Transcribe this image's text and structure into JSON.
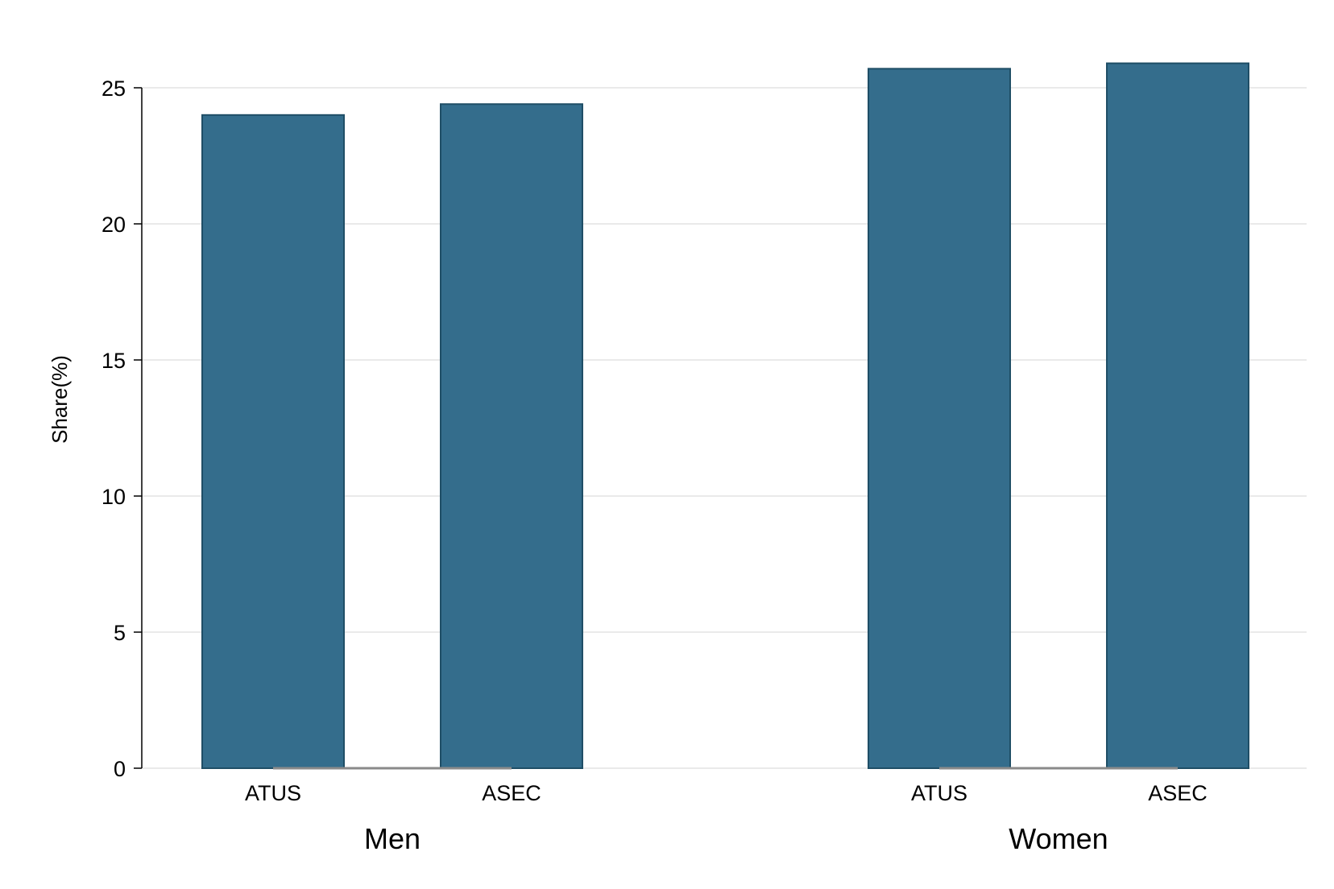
{
  "chart_data": {
    "type": "bar",
    "title": "",
    "xlabel": "",
    "ylabel": "Share(%)",
    "ylim": [
      0,
      25
    ],
    "yticks": [
      0,
      5,
      10,
      15,
      20,
      25
    ],
    "grid": true,
    "legend": "none",
    "groups": [
      {
        "label": "Men",
        "categories": [
          "ATUS",
          "ASEC"
        ],
        "values": [
          24.0,
          24.4
        ]
      },
      {
        "label": "Women",
        "categories": [
          "ATUS",
          "ASEC"
        ],
        "values": [
          25.7,
          25.9
        ]
      }
    ],
    "colors": {
      "bar_fill": "#346d8c",
      "bar_stroke": "#1f4e66",
      "grid": "#e3e3e3",
      "axis": "#000000",
      "baseline": "#8a8a8a"
    }
  }
}
